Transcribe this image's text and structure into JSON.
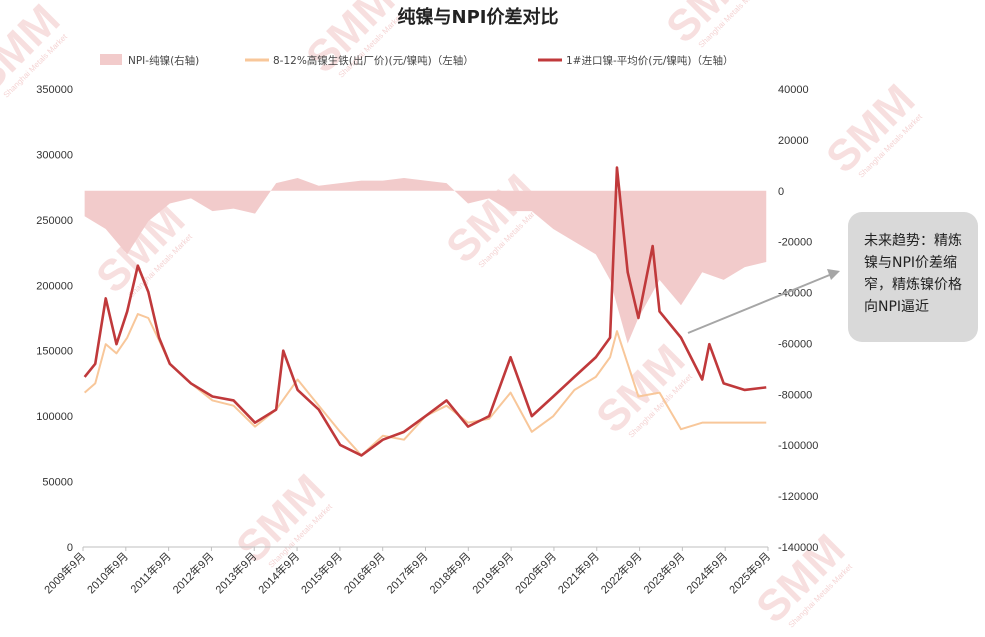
{
  "chart_data": {
    "type": "line",
    "title": "纯镍与NPI价差对比",
    "series": [
      {
        "name": "NPI-纯镍(右轴)",
        "kind": "area",
        "axis": "right",
        "color": "#f2cbcb",
        "x": [
          "2009-09",
          "2010-03",
          "2010-09",
          "2011-03",
          "2011-09",
          "2012-03",
          "2012-09",
          "2013-03",
          "2013-09",
          "2014-03",
          "2014-09",
          "2015-03",
          "2015-09",
          "2016-03",
          "2016-09",
          "2017-03",
          "2017-09",
          "2018-03",
          "2018-09",
          "2019-03",
          "2019-09",
          "2020-03",
          "2020-09",
          "2021-03",
          "2021-09",
          "2022-01",
          "2022-03",
          "2022-06",
          "2022-09",
          "2023-03",
          "2023-09",
          "2024-03",
          "2024-09",
          "2025-03",
          "2025-09"
        ],
        "values": [
          -10000,
          -15000,
          -25000,
          -12000,
          -5000,
          -3000,
          -8000,
          -7000,
          -9000,
          3000,
          5000,
          2000,
          3000,
          4000,
          4000,
          5000,
          4000,
          3000,
          -5000,
          -3000,
          -8000,
          -8000,
          -15000,
          -20000,
          -25000,
          -35000,
          -45000,
          -60000,
          -50000,
          -35000,
          -45000,
          -32000,
          -35000,
          -30000,
          -28000
        ]
      },
      {
        "name": "8-12%高镍生铁(出厂价)(元/镍吨)（左轴）",
        "kind": "line",
        "axis": "left",
        "color": "#f8c79a",
        "x": [
          "2009-09",
          "2009-12",
          "2010-03",
          "2010-06",
          "2010-09",
          "2010-12",
          "2011-03",
          "2011-06",
          "2011-09",
          "2012-03",
          "2012-09",
          "2013-03",
          "2013-09",
          "2014-03",
          "2014-09",
          "2015-03",
          "2015-09",
          "2016-03",
          "2016-09",
          "2017-03",
          "2017-09",
          "2018-03",
          "2018-09",
          "2019-03",
          "2019-09",
          "2020-03",
          "2020-09",
          "2021-03",
          "2021-09",
          "2022-01",
          "2022-03",
          "2022-06",
          "2022-09",
          "2023-03",
          "2023-09",
          "2024-03",
          "2024-09",
          "2025-03",
          "2025-09"
        ],
        "values": [
          118000,
          125000,
          155000,
          148000,
          160000,
          178000,
          175000,
          158000,
          140000,
          125000,
          112000,
          108000,
          92000,
          105000,
          128000,
          108000,
          88000,
          70000,
          85000,
          82000,
          100000,
          108000,
          95000,
          98000,
          118000,
          88000,
          100000,
          120000,
          130000,
          145000,
          165000,
          140000,
          115000,
          118000,
          90000,
          95000,
          95000,
          95000,
          95000
        ]
      },
      {
        "name": "1#进口镍-平均价(元/镍吨)（左轴）",
        "kind": "line",
        "axis": "left",
        "color": "#c0393b",
        "x": [
          "2009-09",
          "2009-12",
          "2010-03",
          "2010-06",
          "2010-09",
          "2010-12",
          "2011-03",
          "2011-06",
          "2011-09",
          "2012-03",
          "2012-09",
          "2013-03",
          "2013-09",
          "2014-03",
          "2014-05",
          "2014-09",
          "2015-03",
          "2015-09",
          "2016-03",
          "2016-09",
          "2017-03",
          "2017-09",
          "2018-03",
          "2018-09",
          "2019-03",
          "2019-09",
          "2020-03",
          "2020-09",
          "2021-03",
          "2021-09",
          "2022-01",
          "2022-03",
          "2022-06",
          "2022-09",
          "2023-01",
          "2023-03",
          "2023-09",
          "2024-03",
          "2024-05",
          "2024-09",
          "2025-03",
          "2025-09"
        ],
        "values": [
          130000,
          140000,
          190000,
          155000,
          180000,
          215000,
          195000,
          160000,
          140000,
          125000,
          115000,
          112000,
          95000,
          105000,
          150000,
          120000,
          105000,
          78000,
          70000,
          82000,
          88000,
          100000,
          112000,
          92000,
          100000,
          145000,
          100000,
          115000,
          130000,
          145000,
          160000,
          290000,
          210000,
          175000,
          230000,
          180000,
          160000,
          128000,
          155000,
          125000,
          120000,
          122000
        ]
      }
    ],
    "x_ticks": [
      "2009年9月",
      "2010年9月",
      "2011年9月",
      "2012年9月",
      "2013年9月",
      "2014年9月",
      "2015年9月",
      "2016年9月",
      "2017年9月",
      "2018年9月",
      "2019年9月",
      "2020年9月",
      "2021年9月",
      "2022年9月",
      "2023年9月",
      "2024年9月",
      "2025年9月"
    ],
    "y_left": {
      "ylim": [
        0,
        350000
      ],
      "ticks": [
        "0",
        "50000",
        "100000",
        "150000",
        "200000",
        "250000",
        "300000",
        "350000"
      ]
    },
    "y_right": {
      "ylim": [
        -140000,
        40000
      ],
      "ticks": [
        "-140000",
        "-120000",
        "-100000",
        "-80000",
        "-60000",
        "-40000",
        "-20000",
        "0",
        "20000",
        "40000"
      ]
    },
    "legend_position": "top",
    "annotation": "未来趋势：精炼镍与NPI价差缩窄，精炼镍价格向NPI逼近",
    "watermark": {
      "logo": "SMM",
      "subtitle": "Shanghai Metals Market"
    }
  }
}
